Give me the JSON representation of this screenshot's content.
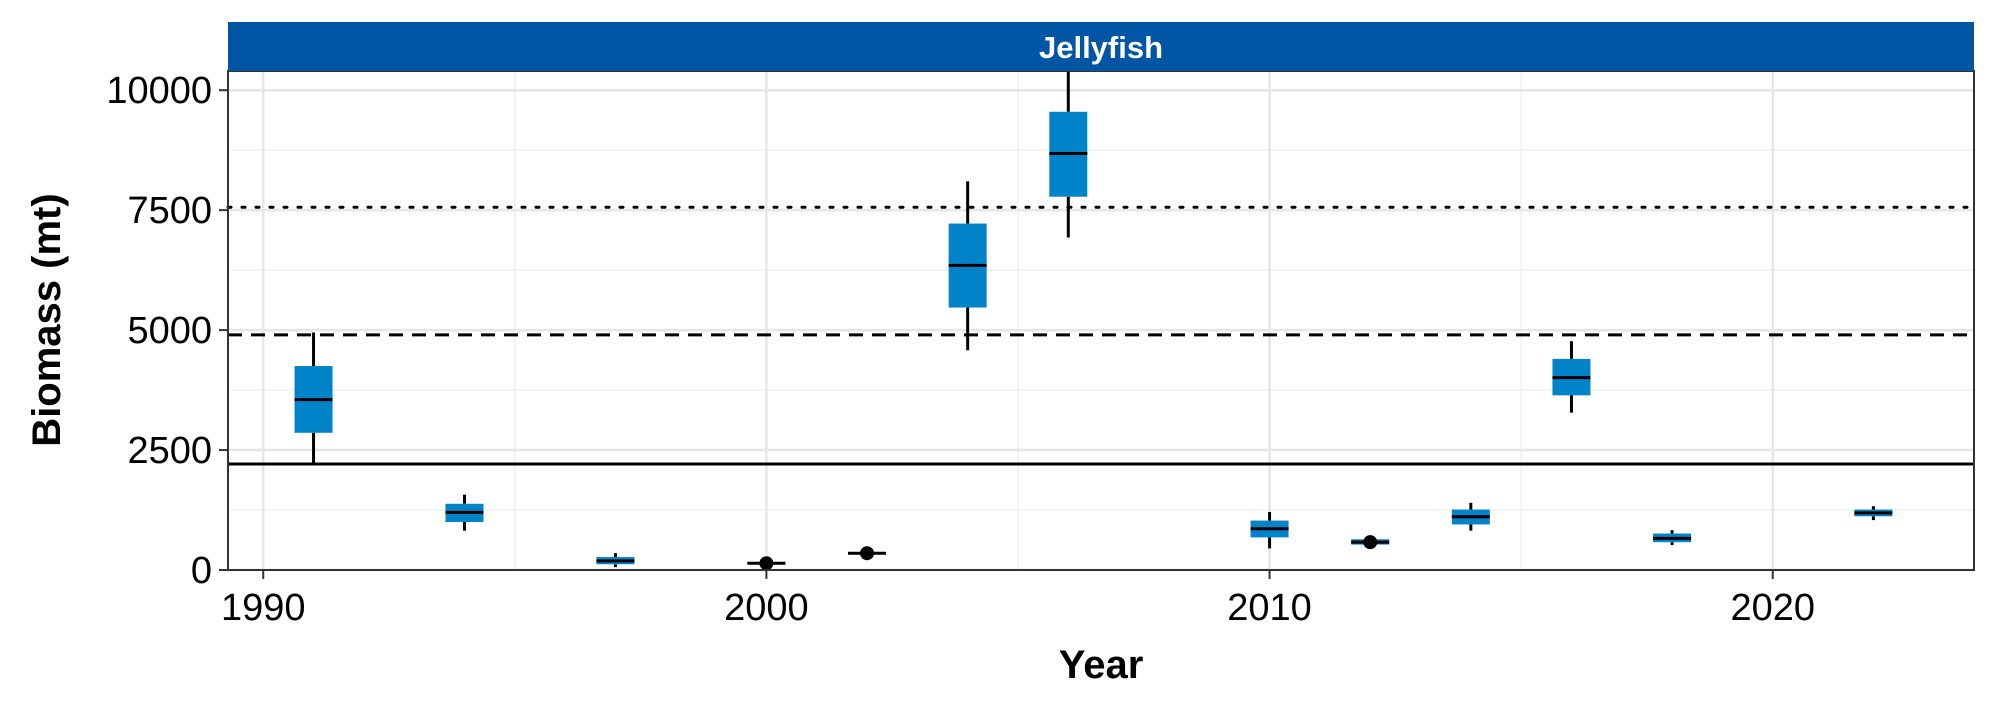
{
  "chart_data": {
    "type": "boxplot",
    "panel_title": "Jellyfish",
    "xlabel": "Year",
    "ylabel": "Biomass (mt)",
    "xlim": [
      1989.3,
      2024.0
    ],
    "ylim": [
      0,
      10400
    ],
    "x_ticks": [
      1990,
      2000,
      2010,
      2020
    ],
    "y_ticks": [
      0,
      2500,
      5000,
      7500,
      10000
    ],
    "x_tick_labels": [
      "1990",
      "2000",
      "2010",
      "2020"
    ],
    "y_tick_labels": [
      "0",
      "2500",
      "5000",
      "7500",
      "10000"
    ],
    "grid": true,
    "box_color": "#0083c9",
    "strip_color": "#0055a4",
    "reference_lines": [
      {
        "style": "solid",
        "value": 2210
      },
      {
        "style": "dashed",
        "value": 4900
      },
      {
        "style": "dotted",
        "value": 7560
      }
    ],
    "boxes": [
      {
        "year": 1991,
        "whisker_low": 2200,
        "q1": 2860,
        "median": 3550,
        "q3": 4250,
        "whisker_high": 4950
      },
      {
        "year": 1994,
        "whisker_low": 820,
        "q1": 1000,
        "median": 1200,
        "q3": 1380,
        "whisker_high": 1570
      },
      {
        "year": 1997,
        "whisker_low": 60,
        "q1": 120,
        "median": 190,
        "q3": 270,
        "whisker_high": 350
      },
      {
        "year": 2000,
        "whisker_low": 100,
        "q1": 120,
        "median": 140,
        "q3": 160,
        "whisker_high": 180
      },
      {
        "year": 2002,
        "whisker_low": 320,
        "q1": 330,
        "median": 350,
        "q3": 370,
        "whisker_high": 380
      },
      {
        "year": 2004,
        "whisker_low": 4580,
        "q1": 5470,
        "median": 6350,
        "q3": 7220,
        "whisker_high": 8100
      },
      {
        "year": 2006,
        "whisker_low": 6930,
        "q1": 7780,
        "median": 8680,
        "q3": 9550,
        "whisker_high": 10400
      },
      {
        "year": 2010,
        "whisker_low": 450,
        "q1": 680,
        "median": 860,
        "q3": 1030,
        "whisker_high": 1210
      },
      {
        "year": 2012,
        "whisker_low": 480,
        "q1": 530,
        "median": 580,
        "q3": 640,
        "whisker_high": 690
      },
      {
        "year": 2014,
        "whisker_low": 820,
        "q1": 950,
        "median": 1110,
        "q3": 1260,
        "whisker_high": 1400
      },
      {
        "year": 2016,
        "whisker_low": 3280,
        "q1": 3640,
        "median": 4010,
        "q3": 4400,
        "whisker_high": 4770
      },
      {
        "year": 2018,
        "whisker_low": 520,
        "q1": 580,
        "median": 660,
        "q3": 760,
        "whisker_high": 830
      },
      {
        "year": 2022,
        "whisker_low": 1040,
        "q1": 1120,
        "median": 1190,
        "q3": 1260,
        "whisker_high": 1330
      }
    ]
  }
}
